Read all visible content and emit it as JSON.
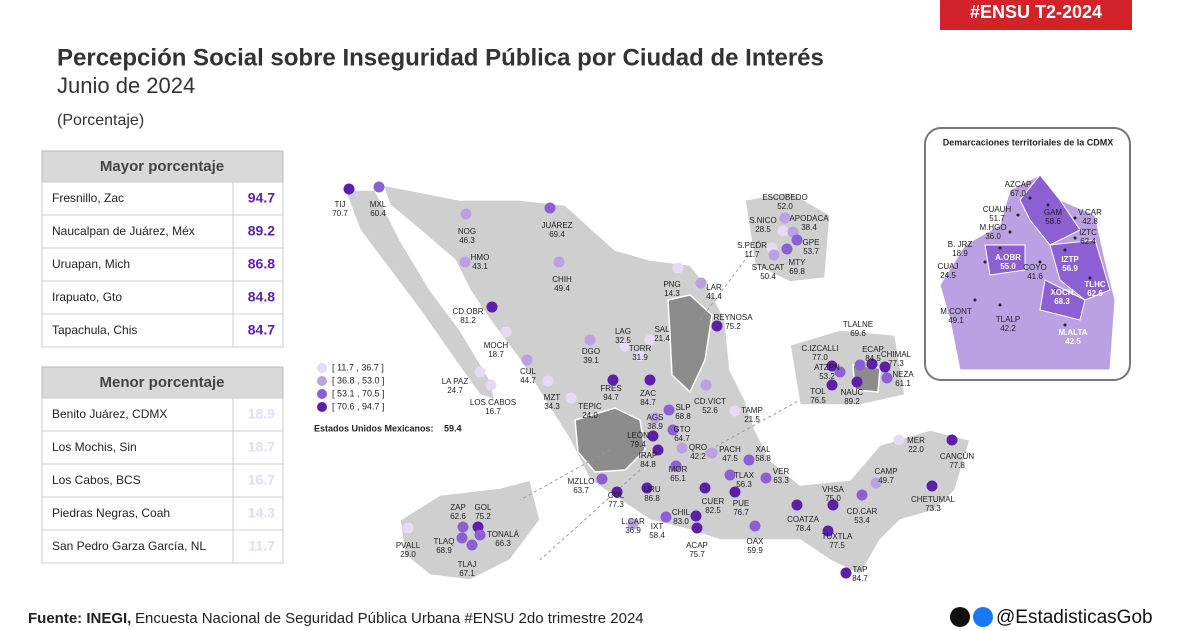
{
  "header": {
    "tag": "#ENSU T2-2024",
    "title": "Percepción Social sobre Inseguridad Pública por Ciudad de Interés",
    "subtitle": "Junio de 2024",
    "unit": "(Porcentaje)"
  },
  "mayor": {
    "title": "Mayor porcentaje",
    "rows": [
      {
        "name": "Fresnillo, Zac",
        "value": 94.7
      },
      {
        "name": "Naucalpan de Juárez, Méx",
        "value": 89.2
      },
      {
        "name": "Uruapan, Mich",
        "value": 86.8
      },
      {
        "name": "Irapuato, Gto",
        "value": 84.8
      },
      {
        "name": "Tapachula, Chis",
        "value": 84.7
      }
    ]
  },
  "menor": {
    "title": "Menor porcentaje",
    "rows": [
      {
        "name": "Benito Juárez, CDMX",
        "value": 18.9
      },
      {
        "name": "Los Mochis, Sin",
        "value": 18.7
      },
      {
        "name": "Los Cabos, BCS",
        "value": 16.7
      },
      {
        "name": "Piedras Negras, Coah",
        "value": 14.3
      },
      {
        "name": "San Pedro Garza García, NL",
        "value": 11.7
      }
    ]
  },
  "legend": [
    {
      "min": 11.7,
      "max": 36.7,
      "label": "[ 11.7 , 36.7 ]",
      "color": "#e6daf5"
    },
    {
      "min": 36.8,
      "max": 53.0,
      "label": "[ 36.8 , 53.0 ]",
      "color": "#bba1e4"
    },
    {
      "min": 53.1,
      "max": 70.5,
      "label": "[ 53.1 , 70.5 ]",
      "color": "#8c5fd3"
    },
    {
      "min": 70.6,
      "max": 94.7,
      "label": "[ 70.6 , 94.7 ]",
      "color": "#5b1fa8"
    }
  ],
  "national": {
    "label": "Estados Unidos Mexicanos:",
    "value": 59.4
  },
  "cities": [
    {
      "name": "TIJ",
      "value": 70.7
    },
    {
      "name": "MXL",
      "value": 60.4
    },
    {
      "name": "NOG",
      "value": 46.3
    },
    {
      "name": "JUÁREZ",
      "value": 69.4
    },
    {
      "name": "HMO",
      "value": 43.1
    },
    {
      "name": "CHIH",
      "value": 49.4
    },
    {
      "name": "PNG",
      "value": 14.3
    },
    {
      "name": "LAR",
      "value": 41.4
    },
    {
      "name": "CD.OBR",
      "value": 81.2
    },
    {
      "name": "REYNOSA",
      "value": 75.2
    },
    {
      "name": "LAG",
      "value": 32.5
    },
    {
      "name": "TORR",
      "value": 31.9
    },
    {
      "name": "SAL",
      "value": 21.4
    },
    {
      "name": "MOCH",
      "value": 18.7
    },
    {
      "name": "DGO",
      "value": 39.1
    },
    {
      "name": "CUL",
      "value": 44.7
    },
    {
      "name": "LA PAZ",
      "value": 24.7
    },
    {
      "name": "LOS CABOS",
      "value": 16.7
    },
    {
      "name": "MZT",
      "value": 34.3
    },
    {
      "name": "FRES",
      "value": 94.7
    },
    {
      "name": "ZAC",
      "value": 84.7
    },
    {
      "name": "CD.VICT",
      "value": 52.6
    },
    {
      "name": "TEPIC",
      "value": 24.0,
      "value_label": "24.0"
    },
    {
      "name": "SLP",
      "value": 68.8
    },
    {
      "name": "AGS",
      "value": 38.9
    },
    {
      "name": "TAMP",
      "value": 21.5
    },
    {
      "name": "LEÓN",
      "value": 79.4
    },
    {
      "name": "GTO",
      "value": 64.7
    },
    {
      "name": "QRO",
      "value": 42.2
    },
    {
      "name": "PACH",
      "value": 47.5
    },
    {
      "name": "IRAP",
      "value": 84.8
    },
    {
      "name": "XAL",
      "value": 58.8
    },
    {
      "name": "MOR",
      "value": 65.1
    },
    {
      "name": "TLAX",
      "value": 56.3
    },
    {
      "name": "VER",
      "value": 63.3
    },
    {
      "name": "MZLLO",
      "value": 63.7
    },
    {
      "name": "URU",
      "value": 86.8
    },
    {
      "name": "COL",
      "value": 77.3
    },
    {
      "name": "CUER",
      "value": 82.5
    },
    {
      "name": "PUE",
      "value": 76.7
    },
    {
      "name": "CHIL",
      "value": 83.0,
      "value_label": "83.0"
    },
    {
      "name": "L.CAR",
      "value": 36.9
    },
    {
      "name": "IXT",
      "value": 58.4
    },
    {
      "name": "ACAP",
      "value": 75.7
    },
    {
      "name": "OAX",
      "value": 59.9
    },
    {
      "name": "COATZA",
      "value": 78.4
    },
    {
      "name": "VHSA",
      "value": 75.0,
      "value_label": "75.0"
    },
    {
      "name": "CD.CAR",
      "value": 53.4
    },
    {
      "name": "CAMP",
      "value": 49.7
    },
    {
      "name": "TUXTLA",
      "value": 77.5
    },
    {
      "name": "TAP",
      "value": 84.7
    },
    {
      "name": "MER",
      "value": 22.0,
      "value_label": "22.0"
    },
    {
      "name": "CANCÚN",
      "value": 77.8
    },
    {
      "name": "CHETUMAL",
      "value": 73.3
    },
    {
      "name": "ESCOBEDO",
      "value": 52.0,
      "value_label": "52.0"
    },
    {
      "name": "S.NICO",
      "value": 28.5
    },
    {
      "name": "APODACA",
      "value": 38.4
    },
    {
      "name": "S.PEDR",
      "value": 11.7
    },
    {
      "name": "GPE",
      "value": 53.7
    },
    {
      "name": "MTY",
      "value": 69.8
    },
    {
      "name": "STA.CAT",
      "value": 50.4
    },
    {
      "name": "C.IZCALLI",
      "value": 77.0,
      "value_label": "77.0"
    },
    {
      "name": "TLALNE",
      "value": 69.6
    },
    {
      "name": "CHIMAL",
      "value": 77.3
    },
    {
      "name": "ECAP",
      "value": 84.5
    },
    {
      "name": "ATZPN",
      "value": 53.2
    },
    {
      "name": "NEZA",
      "value": 61.1
    },
    {
      "name": "TOL",
      "value": 76.5
    },
    {
      "name": "NAUC",
      "value": 89.2
    },
    {
      "name": "ZAP",
      "value": 62.6
    },
    {
      "name": "GOL",
      "value": 75.2
    },
    {
      "name": "TONALÁ",
      "value": 66.3
    },
    {
      "name": "TLAQ",
      "value": 68.9
    },
    {
      "name": "TLAJ",
      "value": 67.1
    },
    {
      "name": "PVALL",
      "value": 29.0,
      "value_label": "29.0"
    }
  ],
  "cdmx": {
    "title": "Demarcaciones territoriales de la CDMX",
    "items": [
      {
        "name": "AZCAP",
        "value": 67.0,
        "value_label": "67.0"
      },
      {
        "name": "GAM",
        "value": 58.6
      },
      {
        "name": "CUAUH",
        "value": 51.7
      },
      {
        "name": "V.CAR",
        "value": 42.8
      },
      {
        "name": "M.HGO",
        "value": 36.0,
        "value_label": "36.0"
      },
      {
        "name": "IZTC",
        "value": 62.4
      },
      {
        "name": "B. JRZ",
        "value": 18.9
      },
      {
        "name": "A.OBR",
        "value": 55.0,
        "value_label": "55.0"
      },
      {
        "name": "CUAJ",
        "value": 24.5
      },
      {
        "name": "COYO",
        "value": 41.6
      },
      {
        "name": "IZTP",
        "value": 56.9
      },
      {
        "name": "TLHC",
        "value": 62.6
      },
      {
        "name": "XOCH",
        "value": 68.3
      },
      {
        "name": "M.CONT",
        "value": 49.1
      },
      {
        "name": "TLALP",
        "value": 42.2
      },
      {
        "name": "M.ALTA",
        "value": 42.5
      }
    ]
  },
  "footer": {
    "source_prefix": "Fuente: INEGI,",
    "source": "Encuesta Nacional de Seguridad Pública Urbana #ENSU 2do trimestre 2024",
    "handle": "@EstadisticasGob"
  }
}
